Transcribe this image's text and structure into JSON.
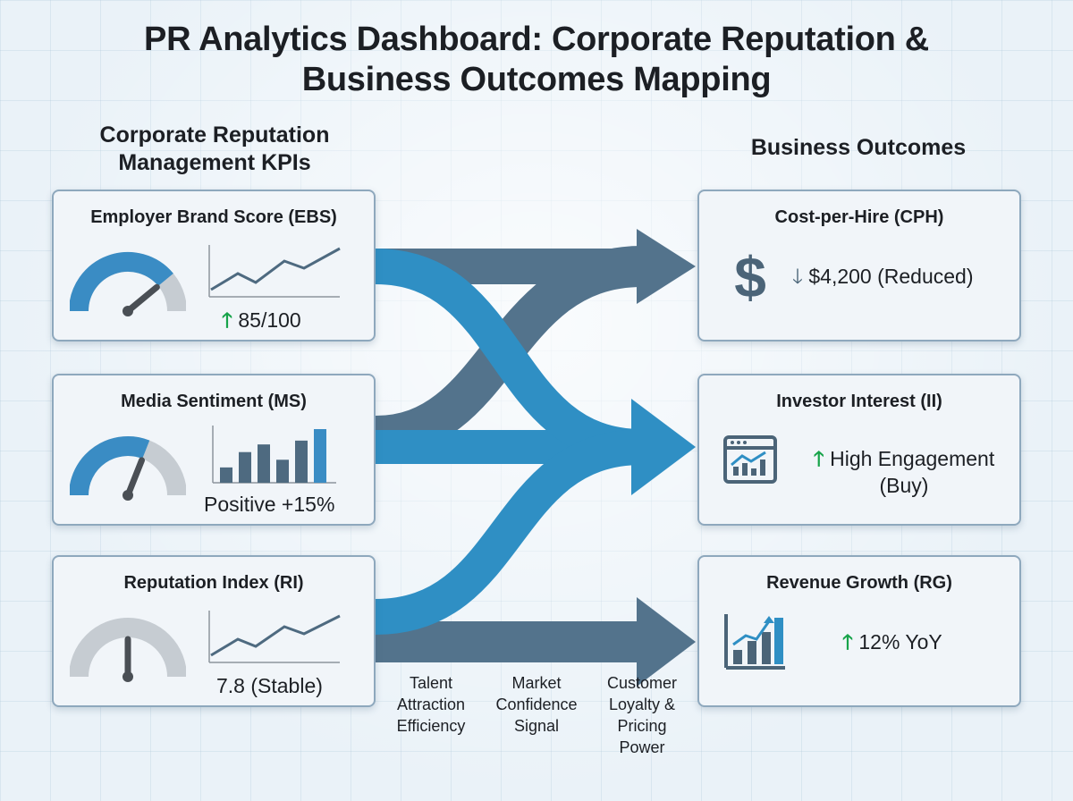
{
  "title_line1": "PR Analytics Dashboard: Corporate Reputation &",
  "title_line2": "Business Outcomes Mapping",
  "kpi_heading_line1": "Corporate Reputation",
  "kpi_heading_line2": "Management KPIs",
  "outcomes_heading": "Business Outcomes",
  "kpis": [
    {
      "title": "Employer Brand Score (EBS)",
      "value": "85/100",
      "trend": "up",
      "gauge_level": 0.78,
      "mini_chart": "line"
    },
    {
      "title": "Media Sentiment (MS)",
      "value": "Positive +15%",
      "trend": "none",
      "gauge_level": 0.72,
      "mini_chart": "bar",
      "bars": [
        2,
        4,
        5,
        3,
        5.5,
        7
      ]
    },
    {
      "title": "Reputation Index (RI)",
      "value": "7.8 (Stable)",
      "trend": "none",
      "gauge_level": 0.62,
      "mini_chart": "line"
    }
  ],
  "outcomes": [
    {
      "title": "Cost-per-Hire (CPH)",
      "value": "$4,200 (Reduced)",
      "trend": "down",
      "icon": "dollar-icon"
    },
    {
      "title": "Investor Interest (II)",
      "value_line1": "High Engagement",
      "value_line2": "(Buy)",
      "trend": "up",
      "icon": "stock-chart-window-icon"
    },
    {
      "title": "Revenue Growth (RG)",
      "value": "12% YoY",
      "trend": "up",
      "icon": "growth-bar-chart-icon"
    }
  ],
  "flow_labels": [
    {
      "lines": [
        "Talent",
        "Attraction",
        "Efficiency"
      ]
    },
    {
      "lines": [
        "Market",
        "Confidence",
        "Signal"
      ]
    },
    {
      "lines": [
        "Customer",
        "Loyalty &",
        "Pricing",
        "Power"
      ]
    }
  ],
  "colors": {
    "flow_blue": "#2f8fc4",
    "flow_slate": "#53738c",
    "gauge_blue": "#3a8cc4",
    "gauge_grey": "#c6ccd2",
    "needle": "#4a4f55",
    "trend_up": "#17a34a",
    "card_bg": "#f1f5f9",
    "card_border": "#8ea8bd",
    "icon_slate": "#4b6478"
  }
}
